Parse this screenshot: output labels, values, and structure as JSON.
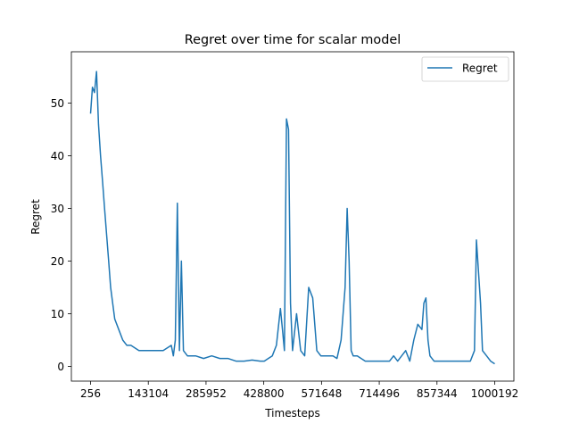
{
  "chart_data": {
    "type": "line",
    "title": "Regret over time for scalar model",
    "xlabel": "Timesteps",
    "ylabel": "Regret",
    "xlim": [
      256,
      1000192
    ],
    "ylim": [
      0,
      55
    ],
    "x_ticks": [
      256,
      143104,
      285952,
      428800,
      571648,
      714496,
      857344,
      1000192
    ],
    "y_ticks": [
      0,
      10,
      20,
      30,
      40,
      50
    ],
    "grid": false,
    "legend_position": "top-right",
    "series": [
      {
        "name": "Regret",
        "color": "#1f77b4",
        "x": [
          256,
          5000,
          10000,
          15000,
          20000,
          25000,
          30000,
          35000,
          40000,
          45000,
          50000,
          55000,
          60000,
          70000,
          80000,
          90000,
          100000,
          120000,
          140000,
          160000,
          180000,
          200000,
          205000,
          210000,
          215000,
          220000,
          225000,
          230000,
          240000,
          260000,
          280000,
          300000,
          320000,
          340000,
          360000,
          380000,
          400000,
          420000,
          430000,
          440000,
          450000,
          460000,
          470000,
          475000,
          480000,
          485000,
          490000,
          495000,
          500000,
          510000,
          520000,
          530000,
          540000,
          550000,
          560000,
          570000,
          580000,
          590000,
          600000,
          610000,
          620000,
          630000,
          635000,
          640000,
          645000,
          650000,
          660000,
          680000,
          700000,
          720000,
          740000,
          750000,
          760000,
          770000,
          780000,
          790000,
          800000,
          810000,
          820000,
          825000,
          830000,
          835000,
          840000,
          850000,
          860000,
          880000,
          900000,
          920000,
          940000,
          950000,
          955000,
          960000,
          965000,
          970000,
          980000,
          990000,
          1000192
        ],
        "values": [
          48,
          53,
          52,
          56,
          46,
          40,
          35,
          30,
          25,
          20,
          15,
          12,
          9,
          7,
          5,
          4,
          4,
          3,
          3,
          3,
          3,
          4,
          2,
          5,
          31,
          3,
          20,
          3,
          2,
          2,
          1.5,
          2,
          1.5,
          1.5,
          1,
          1,
          1.2,
          1,
          1,
          1.5,
          2,
          4,
          11,
          7,
          3,
          47,
          45,
          12,
          3,
          10,
          3,
          2,
          15,
          13,
          3,
          2,
          2,
          2,
          2,
          1.5,
          5,
          15,
          30,
          20,
          3,
          2,
          2,
          1,
          1,
          1,
          1,
          2,
          1,
          2,
          3,
          1,
          5,
          8,
          7,
          12,
          13,
          5,
          2,
          1,
          1,
          1,
          1,
          1,
          1,
          3,
          24,
          18,
          12,
          3,
          2,
          1,
          0.5
        ]
      }
    ]
  }
}
